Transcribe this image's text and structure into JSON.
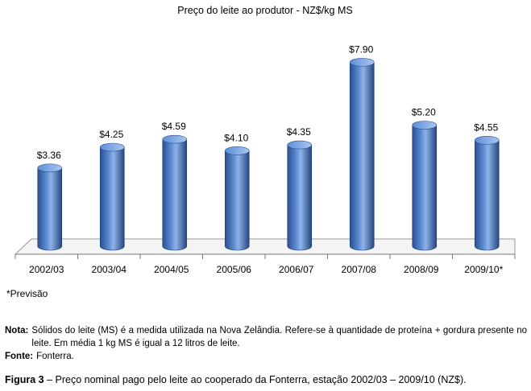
{
  "chart_data": {
    "type": "bar",
    "title": "Preço do leite ao produtor - NZ$/kg MS",
    "categories": [
      "2002/03",
      "2003/04",
      "2004/05",
      "2005/06",
      "2006/07",
      "2007/08",
      "2008/09",
      "2009/10*"
    ],
    "values": [
      3.36,
      4.25,
      4.59,
      4.1,
      4.35,
      7.9,
      5.2,
      4.55
    ],
    "value_labels": [
      "$3.36",
      "$4.25",
      "$4.59",
      "$4.10",
      "$4.35",
      "$7.90",
      "$5.20",
      "$4.55"
    ],
    "xlabel": "",
    "ylabel": "",
    "ylim": [
      0,
      8.5
    ],
    "grid": false,
    "legend": "none",
    "bar_color": "#3f6fb5",
    "bar_highlight": "#8fb3e8",
    "bar_shadow": "#1f3f78"
  },
  "footnote": "*Previsão",
  "notes": [
    {
      "key": "Nota:",
      "text": "Sólidos do leite (MS) é a medida utilizada na Nova Zelândia. Refere-se à quantidade de proteína + gordura presente no leite. Em média 1 kg MS é igual a 12 litros de leite."
    },
    {
      "key": "Fonte:",
      "text": "Fonterra."
    }
  ],
  "caption": {
    "label": "Figura 3",
    "text": " – Preço nominal pago pelo leite ao cooperado da Fonterra, estação 2002/03  – 2009/10  (NZ$)."
  }
}
